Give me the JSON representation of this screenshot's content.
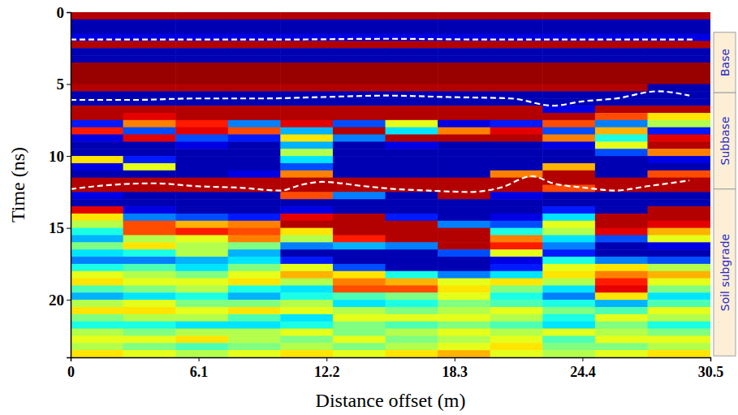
{
  "chart_data": {
    "type": "heatmap",
    "xlabel": "Distance offset (m)",
    "ylabel": "Time (ns)",
    "xlim": [
      0,
      30.5
    ],
    "ylim": [
      24,
      0
    ],
    "xticks": [
      0,
      6.1,
      12.2,
      18.3,
      24.4,
      30.5
    ],
    "yticks": [
      0,
      5,
      10,
      15,
      20
    ],
    "clim": [
      -1,
      1
    ],
    "x_edges": [
      0,
      2.5,
      5,
      7.5,
      10,
      12.5,
      15,
      17.5,
      20,
      22.5,
      25,
      27.5,
      30.5
    ],
    "y_edges": [
      0,
      0.5,
      1,
      1.5,
      2,
      2.5,
      3,
      3.5,
      4,
      4.5,
      5,
      5.5,
      6,
      6.5,
      7,
      7.5,
      8,
      8.5,
      9,
      9.5,
      10,
      10.5,
      11,
      11.5,
      12,
      12.5,
      13,
      13.5,
      14,
      14.5,
      15,
      15.5,
      16,
      16.5,
      17,
      17.5,
      18,
      18.5,
      19,
      19.5,
      20,
      20.5,
      21,
      21.5,
      22,
      22.5,
      23,
      23.5,
      24
    ],
    "cells": [
      [
        0.9,
        0.9,
        0.9,
        0.9,
        0.9,
        0.9,
        0.9,
        0.9,
        0.9,
        0.9,
        0.9,
        0.9
      ],
      [
        -0.9,
        -0.9,
        -0.9,
        -0.9,
        -0.9,
        -0.9,
        -0.9,
        -0.9,
        -0.9,
        -0.9,
        -0.9,
        -0.9
      ],
      [
        -0.9,
        -0.9,
        -0.9,
        -0.9,
        -0.9,
        -0.9,
        -0.9,
        -0.9,
        -0.9,
        -0.9,
        -0.9,
        -0.9
      ],
      [
        -0.8,
        -0.8,
        -0.8,
        -0.8,
        -0.8,
        -0.8,
        -0.8,
        -0.8,
        -0.8,
        -0.8,
        -0.8,
        -0.8
      ],
      [
        0.9,
        0.9,
        0.9,
        0.9,
        0.9,
        0.9,
        0.9,
        0.9,
        0.9,
        0.9,
        0.9,
        0.9
      ],
      [
        -0.9,
        -0.9,
        -0.9,
        -0.9,
        -0.9,
        -0.9,
        -0.9,
        -0.9,
        -0.9,
        -0.9,
        -0.9,
        -0.9
      ],
      [
        -0.9,
        -0.9,
        -0.9,
        -0.9,
        -0.9,
        -0.9,
        -0.9,
        -0.9,
        -0.9,
        -0.9,
        -0.9,
        -0.9
      ],
      [
        0.95,
        0.95,
        0.95,
        0.95,
        0.95,
        0.95,
        0.95,
        0.95,
        0.95,
        0.95,
        0.95,
        0.95
      ],
      [
        0.95,
        0.95,
        0.95,
        0.95,
        0.95,
        0.95,
        0.95,
        0.95,
        0.95,
        0.95,
        0.95,
        0.95
      ],
      [
        0.95,
        0.95,
        0.95,
        0.95,
        0.95,
        0.95,
        0.95,
        0.95,
        0.95,
        0.95,
        0.95,
        0.95
      ],
      [
        0.9,
        0.9,
        0.9,
        0.9,
        0.9,
        0.9,
        0.9,
        0.9,
        0.9,
        0.9,
        0.9,
        -0.9
      ],
      [
        -0.9,
        -0.9,
        -0.9,
        -0.9,
        -0.9,
        -0.9,
        -0.9,
        -0.9,
        -0.9,
        -0.9,
        -0.9,
        -0.9
      ],
      [
        -0.9,
        -0.9,
        -0.9,
        -0.9,
        -0.9,
        -0.9,
        -0.9,
        -0.9,
        -0.9,
        -0.9,
        -0.9,
        -0.9
      ],
      [
        0.9,
        0.9,
        0.9,
        0.9,
        0.9,
        0.9,
        0.9,
        0.9,
        0.9,
        -0.8,
        0.9,
        0.9
      ],
      [
        0.9,
        0.8,
        0.9,
        0.9,
        0.9,
        0.9,
        0.9,
        0.9,
        0.9,
        0.9,
        0.6,
        0.3
      ],
      [
        -0.7,
        0.5,
        0.7,
        -0.5,
        0.8,
        -0.6,
        0.2,
        -0.8,
        -0.7,
        0.6,
        -0.5,
        0.1
      ],
      [
        0.7,
        -0.6,
        0.8,
        0.6,
        -0.4,
        0.9,
        -0.3,
        0.5,
        0.8,
        -0.6,
        0.4,
        -0.7
      ],
      [
        -0.8,
        0.8,
        -0.6,
        -0.7,
        0.3,
        -0.5,
        0.9,
        0.9,
        0.9,
        0.5,
        -0.2,
        0.8
      ],
      [
        -0.9,
        -0.9,
        -0.8,
        -0.9,
        -0.4,
        -0.9,
        -0.8,
        -0.9,
        -0.9,
        -0.8,
        0.2,
        0.9
      ],
      [
        -0.9,
        -0.9,
        -0.9,
        -0.9,
        0.1,
        -0.9,
        -0.9,
        -0.9,
        -0.9,
        -0.9,
        -0.6,
        0.5
      ],
      [
        0.3,
        -0.7,
        -0.9,
        -0.9,
        -0.3,
        -0.9,
        -0.9,
        -0.9,
        -0.9,
        -0.9,
        -0.9,
        -0.8
      ],
      [
        -0.8,
        0.2,
        -0.9,
        -0.9,
        -0.6,
        -0.9,
        -0.9,
        -0.9,
        -0.9,
        0.4,
        -0.9,
        -0.9
      ],
      [
        -0.9,
        -0.9,
        -0.9,
        -0.8,
        0.5,
        -0.9,
        -0.9,
        -0.9,
        0.5,
        0.9,
        -0.9,
        0.6
      ],
      [
        0.9,
        0.9,
        0.9,
        0.9,
        0.9,
        0.9,
        0.9,
        0.9,
        0.9,
        0.9,
        0.9,
        0.9
      ],
      [
        0.9,
        0.9,
        0.9,
        0.9,
        0.9,
        0.9,
        0.9,
        0.9,
        0.9,
        0.6,
        0.9,
        0.9
      ],
      [
        -0.8,
        -0.9,
        -0.9,
        -0.9,
        0.6,
        -0.5,
        -0.9,
        0.9,
        -0.8,
        -0.9,
        -0.9,
        -0.9
      ],
      [
        -0.9,
        -0.9,
        -0.9,
        -0.9,
        -0.9,
        -0.9,
        -0.9,
        -0.9,
        -0.9,
        -0.9,
        -0.9,
        -0.9
      ],
      [
        0.8,
        -0.8,
        -0.9,
        -0.9,
        -0.8,
        -0.9,
        -0.9,
        -0.9,
        -0.9,
        -0.7,
        -0.9,
        0.9
      ],
      [
        0.3,
        -0.5,
        -0.6,
        -0.7,
        0.8,
        0.9,
        -0.7,
        -0.9,
        -0.8,
        -0.3,
        0.9,
        0.9
      ],
      [
        0.1,
        0.6,
        0.4,
        0.5,
        0.9,
        0.9,
        0.9,
        -0.5,
        -0.6,
        0.2,
        0.9,
        0.8
      ],
      [
        -0.2,
        0.6,
        0.7,
        0.6,
        0.3,
        0.9,
        0.9,
        0.9,
        -0.2,
        0.1,
        0.8,
        0.4
      ],
      [
        -0.4,
        0.1,
        0.2,
        0.5,
        0.1,
        0.7,
        0.9,
        0.9,
        0.5,
        -0.3,
        -0.6,
        0.2
      ],
      [
        0.0,
        0.3,
        0.1,
        0.0,
        -0.5,
        -0.4,
        -0.5,
        0.9,
        0.7,
        -0.5,
        -0.9,
        -0.8
      ],
      [
        -0.3,
        -0.2,
        0.1,
        -0.4,
        -0.9,
        -0.9,
        -0.9,
        -0.6,
        0.2,
        -0.7,
        -0.9,
        -0.9
      ],
      [
        -0.5,
        -0.5,
        -0.4,
        -0.3,
        -0.7,
        -0.9,
        -0.9,
        -0.9,
        -0.8,
        -0.2,
        -0.5,
        -0.6
      ],
      [
        -0.2,
        -0.1,
        -0.3,
        0.0,
        0.2,
        -0.6,
        -0.9,
        -0.9,
        -0.7,
        0.2,
        0.3,
        0.1
      ],
      [
        0.2,
        0.1,
        0.0,
        0.2,
        0.4,
        0.3,
        -0.2,
        -0.5,
        -0.3,
        0.3,
        0.5,
        0.4
      ],
      [
        0.3,
        0.2,
        0.2,
        0.3,
        0.1,
        0.5,
        0.4,
        0.2,
        0.3,
        0.1,
        0.7,
        0.2
      ],
      [
        -0.1,
        0.0,
        0.1,
        -0.2,
        -0.3,
        0.6,
        0.6,
        0.3,
        0.0,
        -0.3,
        0.8,
        0.0
      ],
      [
        -0.4,
        -0.3,
        -0.2,
        -0.4,
        -0.2,
        -0.1,
        0.0,
        0.2,
        -0.2,
        -0.5,
        0.3,
        -0.3
      ],
      [
        0.1,
        0.2,
        0.0,
        0.0,
        0.1,
        -0.3,
        -0.2,
        0.0,
        -0.1,
        -0.2,
        -0.4,
        -0.1
      ],
      [
        0.3,
        0.3,
        0.2,
        0.3,
        0.2,
        0.1,
        0.0,
        0.1,
        0.2,
        0.0,
        -0.1,
        0.2
      ],
      [
        0.0,
        0.1,
        0.1,
        -0.1,
        -0.3,
        0.2,
        0.2,
        0.2,
        0.1,
        -0.2,
        0.2,
        0.1
      ],
      [
        -0.2,
        -0.2,
        -0.3,
        -0.3,
        -0.2,
        0.0,
        -0.1,
        0.0,
        -0.1,
        -0.3,
        0.0,
        -0.2
      ],
      [
        0.1,
        0.0,
        0.1,
        0.1,
        0.2,
        0.0,
        0.1,
        0.2,
        0.1,
        0.2,
        0.1,
        0.0
      ],
      [
        0.2,
        0.2,
        0.3,
        0.1,
        0.0,
        0.2,
        0.0,
        0.1,
        0.2,
        -0.1,
        0.2,
        0.2
      ],
      [
        0.1,
        0.0,
        -0.1,
        0.0,
        0.1,
        0.0,
        0.1,
        0.2,
        0.3,
        0.0,
        0.0,
        0.1
      ],
      [
        0.3,
        0.2,
        0.1,
        0.2,
        0.3,
        0.2,
        0.3,
        0.4,
        0.2,
        0.1,
        0.2,
        0.3
      ]
    ],
    "interfaces": [
      {
        "color": "#ffffff",
        "line_style": "dashed",
        "x": [
          0,
          5,
          10,
          15,
          20,
          25,
          29.7
        ],
        "y": [
          1.9,
          1.9,
          1.9,
          1.85,
          1.9,
          1.9,
          1.9
        ]
      },
      {
        "color": "#ffffff",
        "line_style": "dashed",
        "x": [
          0,
          3,
          6,
          9,
          12,
          15,
          18,
          21,
          23,
          24.4,
          26,
          28,
          29.5
        ],
        "y": [
          6.1,
          6.1,
          6.0,
          6.0,
          5.9,
          5.8,
          5.9,
          6.0,
          6.5,
          6.2,
          6.0,
          5.5,
          5.8
        ]
      },
      {
        "color": "#ffffff",
        "line_style": "dashed",
        "x": [
          0,
          2,
          4,
          6,
          8,
          10,
          11,
          12,
          14,
          15.5,
          17,
          19,
          20.5,
          22,
          23,
          24.5,
          26,
          27.5,
          29.5
        ],
        "y": [
          12.3,
          12.0,
          11.9,
          12.1,
          12.2,
          12.4,
          12.0,
          11.8,
          12.1,
          12.3,
          12.4,
          12.5,
          12.2,
          11.4,
          11.9,
          12.2,
          12.4,
          12.1,
          11.7
        ]
      }
    ],
    "layers": [
      {
        "label": "Base",
        "from": 1.4,
        "to": 5.6
      },
      {
        "label": "Subbase",
        "from": 5.6,
        "to": 12.3
      },
      {
        "label": "Soil subgrade",
        "from": 12.3,
        "to": 23.9
      }
    ]
  }
}
